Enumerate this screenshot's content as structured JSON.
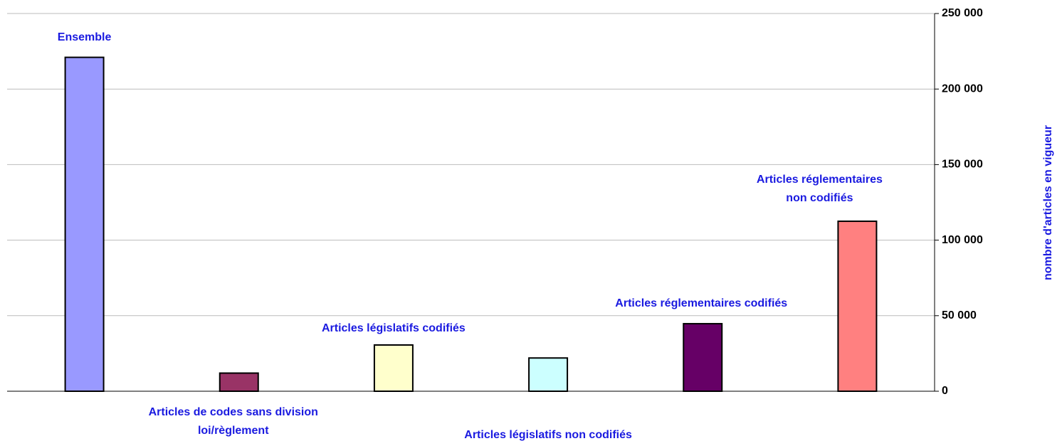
{
  "chart_data": {
    "type": "bar",
    "y_label": "nombre d'articles en vigueur",
    "categories": [
      "Ensemble",
      "Articles de codes sans division\nloi/règlement",
      "Articles législatifs codifiés",
      "Articles législatifs non codifiés",
      "Articles réglementaires codifiés",
      "Articles réglementaires\nnon codifiés"
    ],
    "values": [
      221000,
      12000,
      30600,
      22000,
      44700,
      112500
    ],
    "colors": [
      "#9999ff",
      "#993366",
      "#ffffcc",
      "#ccffff",
      "#660066",
      "#ff8080"
    ],
    "ylim": [
      0,
      250000
    ],
    "yticks": [
      0,
      {
        "value": 50000,
        "label": "50 000"
      },
      {
        "value": 100000,
        "label": "100 000"
      },
      {
        "value": 150000,
        "label": "150 000"
      },
      {
        "value": 200000,
        "label": "200 000"
      },
      {
        "value": 250000,
        "label": "250 000"
      }
    ],
    "grid": true
  }
}
